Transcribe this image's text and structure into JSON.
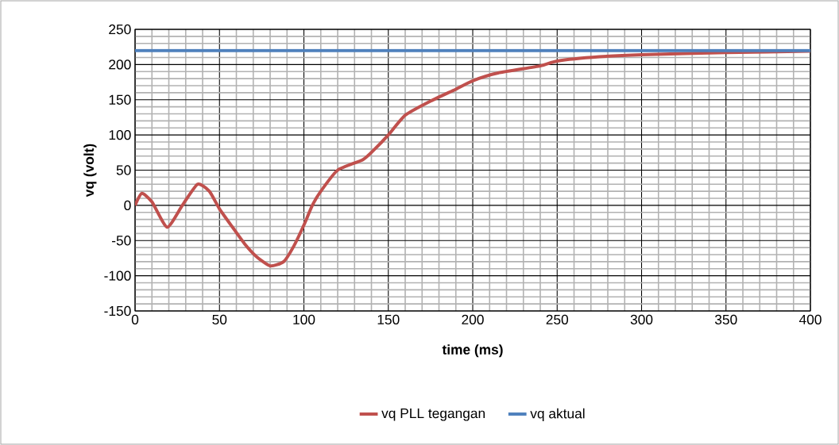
{
  "chart_data": {
    "type": "line",
    "xlabel": "time (ms)",
    "ylabel": "vq (volt)",
    "xlim": [
      0,
      400
    ],
    "ylim": [
      -150,
      250
    ],
    "xticks": [
      0,
      50,
      100,
      150,
      200,
      250,
      300,
      350,
      400
    ],
    "yticks": [
      -150,
      -100,
      -50,
      0,
      50,
      100,
      150,
      200,
      250
    ],
    "grid": true,
    "legend": "bottom",
    "marker": "none",
    "line_style": "solid",
    "series": [
      {
        "name": "vq PLL tegangan",
        "color": "#c0504d",
        "x": [
          0,
          4,
          10,
          19,
          28,
          37,
          44,
          50,
          58,
          65,
          72,
          80,
          88,
          94,
          100,
          105,
          110,
          120,
          135,
          142,
          150,
          160,
          175,
          190,
          200,
          215,
          240,
          250,
          275,
          300,
          350,
          400
        ],
        "values": [
          0,
          17,
          5,
          -31,
          0,
          30,
          20,
          -5,
          -32,
          -55,
          -73,
          -86,
          -80,
          -58,
          -28,
          0,
          20,
          50,
          65,
          80,
          100,
          128,
          148,
          165,
          177,
          188,
          198,
          205,
          211,
          214,
          217,
          219
        ]
      },
      {
        "name": "vq aktual",
        "color": "#4f81bd",
        "x": [
          0,
          400
        ],
        "values": [
          220,
          220
        ]
      }
    ]
  }
}
